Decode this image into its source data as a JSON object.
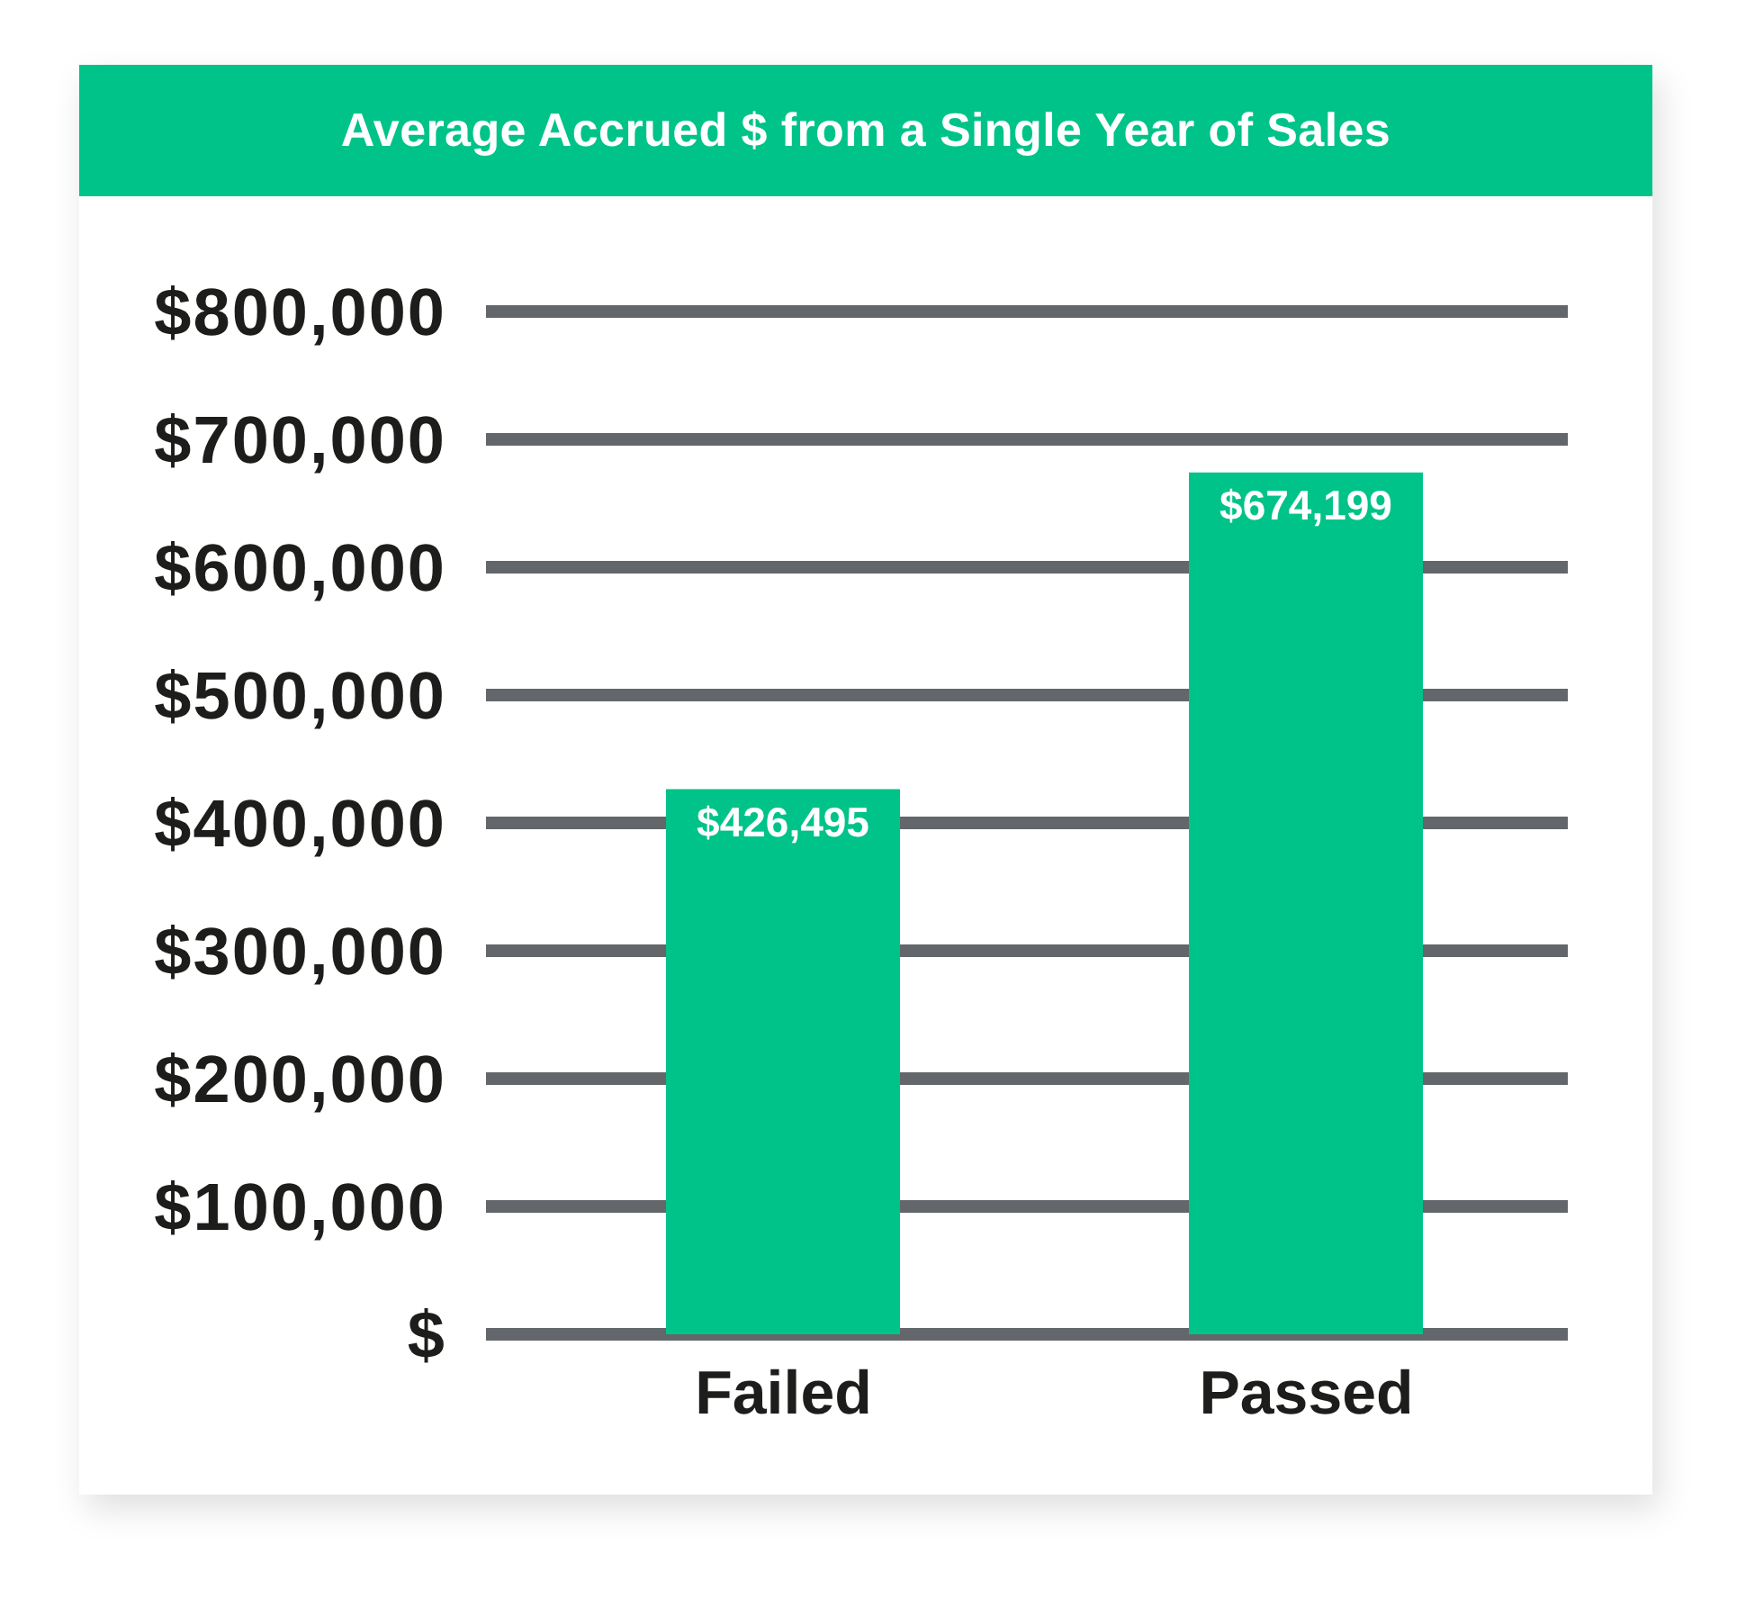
{
  "chart_data": {
    "type": "bar",
    "title": "Average Accrued $ from a Single Year of Sales",
    "categories": [
      "Failed",
      "Passed"
    ],
    "values": [
      426495,
      674199
    ],
    "color": "#00c389",
    "value_labels": [
      "$426,495",
      "$674,199"
    ],
    "ylim": [
      0,
      800000
    ],
    "yticks": [
      {
        "value": 0,
        "label": "$"
      },
      {
        "value": 100000,
        "label": "$100,000"
      },
      {
        "value": 200000,
        "label": "$200,000"
      },
      {
        "value": 300000,
        "label": "$300,000"
      },
      {
        "value": 400000,
        "label": "$400,000"
      },
      {
        "value": 500000,
        "label": "$500,000"
      },
      {
        "value": 600000,
        "label": "$600,000"
      },
      {
        "value": 700000,
        "label": "$700,000"
      },
      {
        "value": 800000,
        "label": "$800,000"
      }
    ],
    "grid": "y"
  }
}
